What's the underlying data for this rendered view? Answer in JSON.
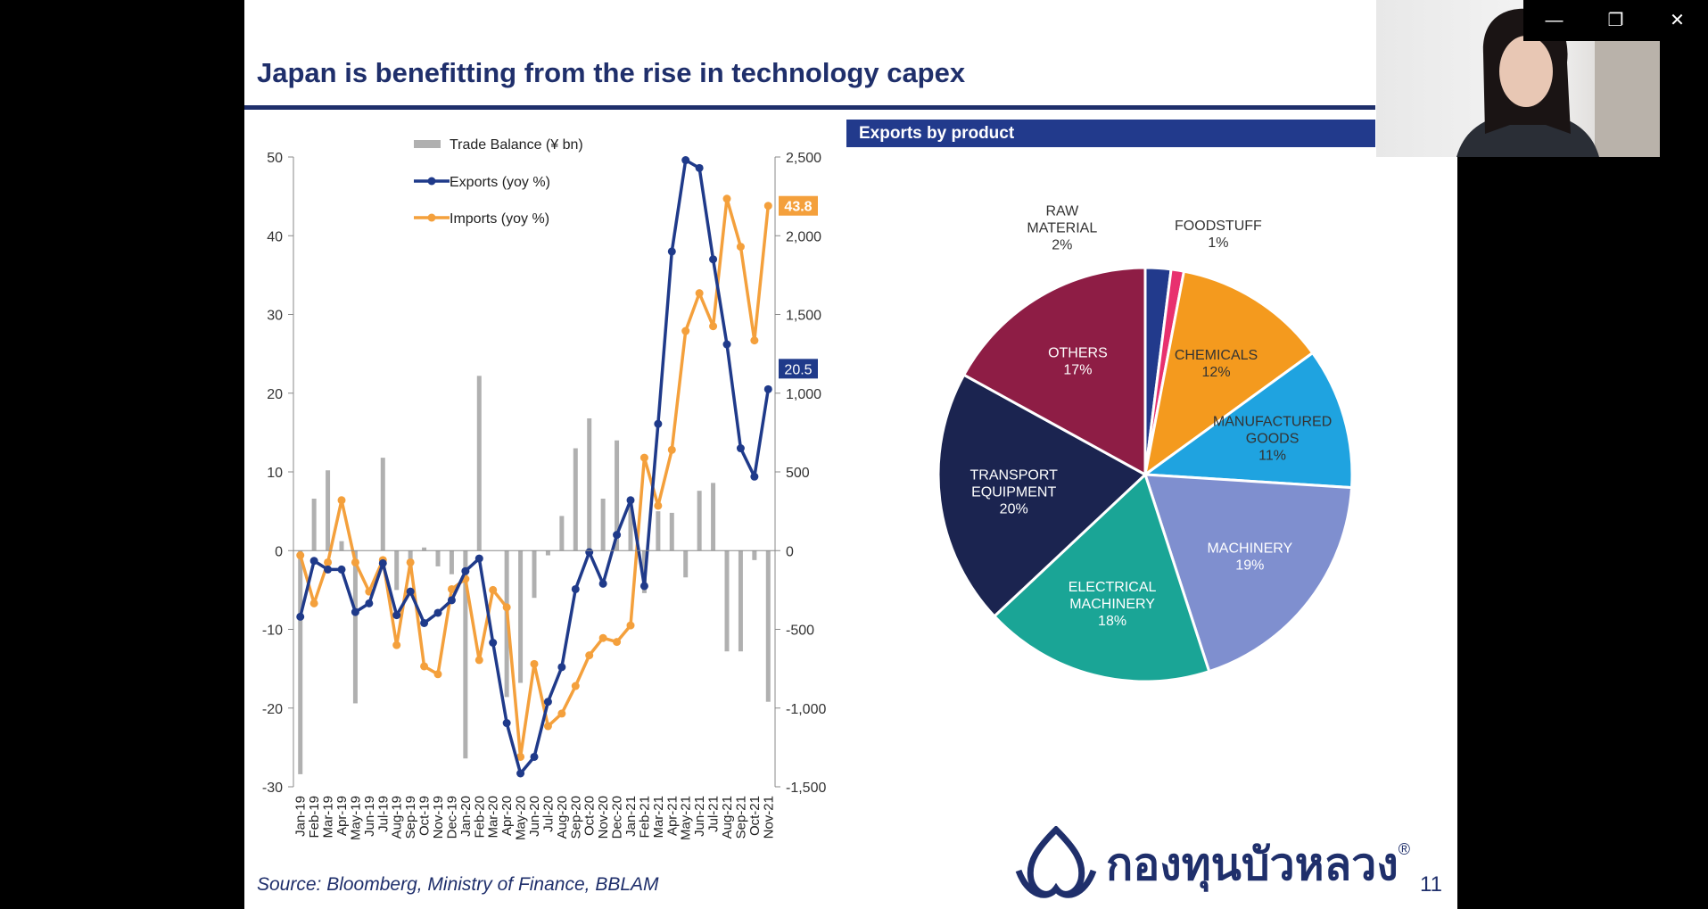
{
  "slide": {
    "title": "Japan is benefitting from the rise in technology capex",
    "pie_header": "Exports by product",
    "source": "Source:  Bloomberg, Ministry of Finance, BBLAM",
    "logo_text": "กองทุนบัวหลวง",
    "logo_mark": "®",
    "page_number": "11"
  },
  "window_controls": {
    "minimize": "—",
    "restore": "❐",
    "close": "✕"
  },
  "colors": {
    "navy": "#1f2f6b",
    "exports": "#1f3a8a",
    "imports": "#f4a03c",
    "trade": "#b0b0b0"
  },
  "chart_data": [
    {
      "type": "line",
      "categories": [
        "Jan-19",
        "Feb-19",
        "Mar-19",
        "Apr-19",
        "May-19",
        "Jun-19",
        "Jul-19",
        "Aug-19",
        "Sep-19",
        "Oct-19",
        "Nov-19",
        "Dec-19",
        "Jan-20",
        "Feb-20",
        "Mar-20",
        "Apr-20",
        "May-20",
        "Jun-20",
        "Jul-20",
        "Aug-20",
        "Sep-20",
        "Oct-20",
        "Nov-20",
        "Dec-20",
        "Jan-21",
        "Feb-21",
        "Mar-21",
        "Apr-21",
        "May-21",
        "Jun-21",
        "Jul-21",
        "Aug-21",
        "Sep-21",
        "Oct-21",
        "Nov-21"
      ],
      "y_left_ticks": [
        "50",
        "40",
        "30",
        "20",
        "10",
        "0",
        "-10",
        "-20",
        "-30"
      ],
      "y_left_range": [
        -30,
        50
      ],
      "y_right_ticks": [
        "2,500",
        "2,000",
        "1,500",
        "1,000",
        "500",
        "0",
        "-500",
        "-1,000",
        "-1,500"
      ],
      "y_right_range": [
        -1500,
        2500
      ],
      "series": [
        {
          "name": "Trade Balance (¥ bn)",
          "kind": "bar",
          "axis": "right",
          "values": [
            -1420,
            330,
            510,
            60,
            -970,
            0,
            590,
            -250,
            -120,
            20,
            -100,
            -150,
            -1320,
            1110,
            0,
            -930,
            -840,
            -300,
            -30,
            220,
            650,
            840,
            330,
            700,
            320,
            -270,
            250,
            240,
            -170,
            380,
            430,
            -640,
            -640,
            -60,
            -960
          ]
        },
        {
          "name": "Exports (yoy %)",
          "kind": "line",
          "axis": "left",
          "values": [
            -8.4,
            -1.3,
            -2.4,
            -2.4,
            -7.8,
            -6.7,
            -1.6,
            -8.2,
            -5.2,
            -9.2,
            -7.9,
            -6.3,
            -2.6,
            -1.0,
            -11.7,
            -21.9,
            -28.3,
            -26.2,
            -19.2,
            -14.8,
            -4.9,
            -0.2,
            -4.2,
            2.0,
            6.4,
            -4.5,
            16.1,
            38.0,
            49.6,
            48.6,
            37.0,
            26.2,
            13.0,
            9.4,
            20.5
          ]
        },
        {
          "name": "Imports (yoy %)",
          "kind": "line",
          "axis": "left",
          "values": [
            -0.6,
            -6.7,
            -1.5,
            6.4,
            -1.5,
            -5.2,
            -1.2,
            -12.0,
            -1.5,
            -14.7,
            -15.7,
            -4.9,
            -3.6,
            -13.9,
            -5.0,
            -7.2,
            -26.2,
            -14.4,
            -22.3,
            -20.7,
            -17.2,
            -13.3,
            -11.1,
            -11.6,
            -9.5,
            11.8,
            5.7,
            12.8,
            27.9,
            32.7,
            28.5,
            44.7,
            38.6,
            26.7,
            43.8
          ]
        }
      ],
      "last_labels": {
        "exports": "20.5",
        "imports": "43.8"
      }
    },
    {
      "type": "pie",
      "slices": [
        {
          "label": "RAW MATERIAL",
          "value": 2,
          "pct": "2%",
          "color": "#223a8c"
        },
        {
          "label": "FOODSTUFF",
          "value": 1,
          "pct": "1%",
          "color": "#e8316f"
        },
        {
          "label": "CHEMICALS",
          "value": 12,
          "pct": "12%",
          "color": "#f49a1e"
        },
        {
          "label": "MANUFACTURED GOODS",
          "value": 11,
          "pct": "11%",
          "color": "#1fa3e0"
        },
        {
          "label": "MACHINERY",
          "value": 19,
          "pct": "19%",
          "color": "#7f8fcf"
        },
        {
          "label": "ELECTRICAL MACHINERY",
          "value": 18,
          "pct": "18%",
          "color": "#1aa596"
        },
        {
          "label": "TRANSPORT EQUIPMENT",
          "value": 20,
          "pct": "20%",
          "color": "#1b2450"
        },
        {
          "label": "OTHERS",
          "value": 17,
          "pct": "17%",
          "color": "#8e1d45"
        }
      ]
    }
  ]
}
